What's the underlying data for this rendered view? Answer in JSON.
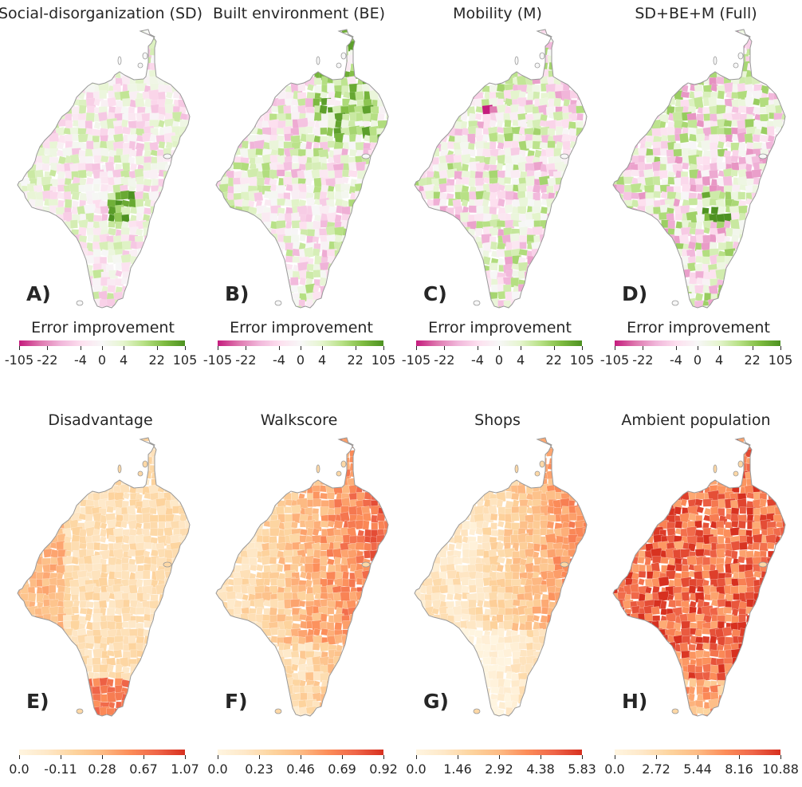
{
  "colors": {
    "diverging": [
      "#c51b7d",
      "#de77ae",
      "#f1b6da",
      "#fde0ef",
      "#f7f7f7",
      "#e6f5d0",
      "#b8e186",
      "#7fbc41",
      "#4d9221"
    ],
    "sequential": [
      "#fff5e0",
      "#fee8c8",
      "#fdd49e",
      "#fdbb84",
      "#fc8d59",
      "#ef6548",
      "#d7301f"
    ],
    "outline": "#999999"
  },
  "panels": [
    {
      "id": "A",
      "title": "Social-disorganization (SD)",
      "label": "A)",
      "cbar_title": "Error improvement",
      "scale": "diverging",
      "ticks": [
        "-105",
        "-22",
        "-4",
        "0",
        "4",
        "22",
        "105"
      ]
    },
    {
      "id": "B",
      "title": "Built environment (BE)",
      "label": "B)",
      "cbar_title": "Error improvement",
      "scale": "diverging",
      "ticks": [
        "-105",
        "-22",
        "-4",
        "0",
        "4",
        "22",
        "105"
      ]
    },
    {
      "id": "C",
      "title": "Mobility (M)",
      "label": "C)",
      "cbar_title": "Error improvement",
      "scale": "diverging",
      "ticks": [
        "-105",
        "-22",
        "-4",
        "0",
        "4",
        "22",
        "105"
      ]
    },
    {
      "id": "D",
      "title": "SD+BE+M (Full)",
      "label": "D)",
      "cbar_title": "Error improvement",
      "scale": "diverging",
      "ticks": [
        "-105",
        "-22",
        "-4",
        "0",
        "4",
        "22",
        "105"
      ]
    },
    {
      "id": "E",
      "title": "Disadvantage",
      "label": "E)",
      "cbar_title": "",
      "scale": "sequential",
      "ticks": [
        "0.0",
        "-0.11",
        "0.28",
        "0.67",
        "1.07"
      ]
    },
    {
      "id": "F",
      "title": "Walkscore",
      "label": "F)",
      "cbar_title": "",
      "scale": "sequential",
      "ticks": [
        "0.0",
        "0.23",
        "0.46",
        "0.69",
        "0.92"
      ]
    },
    {
      "id": "G",
      "title": "Shops",
      "label": "G)",
      "cbar_title": "",
      "scale": "sequential",
      "ticks": [
        "0.0",
        "1.46",
        "2.92",
        "4.38",
        "5.83"
      ]
    },
    {
      "id": "H",
      "title": "Ambient population",
      "label": "H)",
      "cbar_title": "",
      "scale": "sequential",
      "ticks": [
        "0.0",
        "2.72",
        "5.44",
        "8.16",
        "10.88"
      ]
    }
  ]
}
